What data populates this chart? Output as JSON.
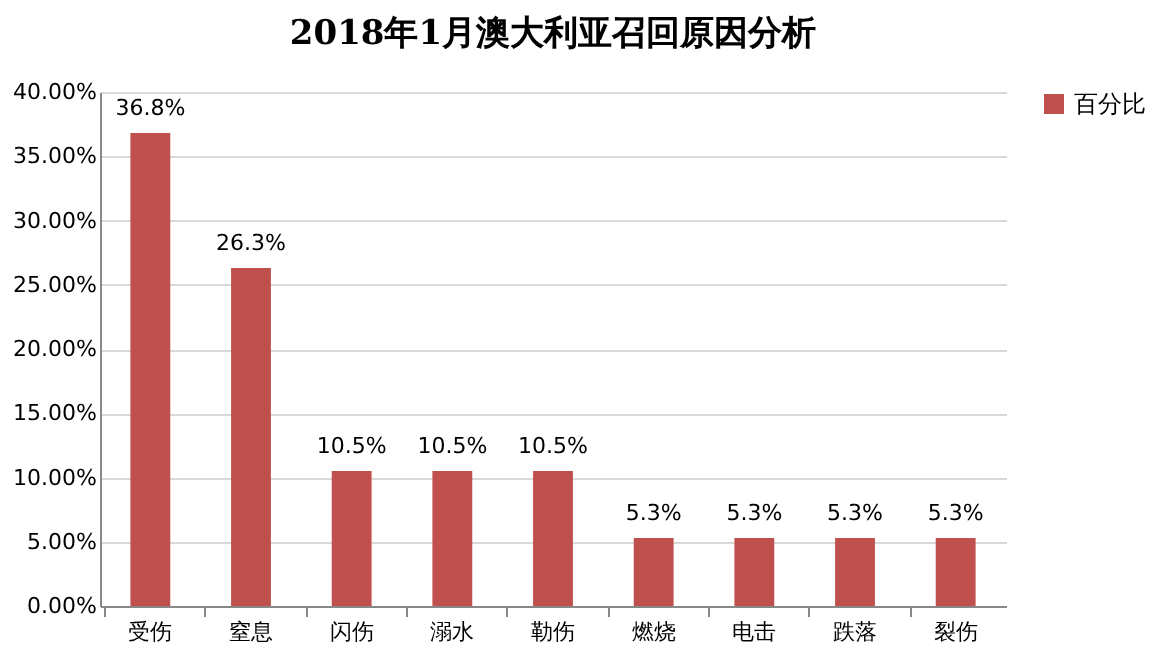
{
  "chart_data": {
    "type": "bar",
    "title": "2018年1月澳大利亚召回原因分析",
    "categories": [
      "受伤",
      "窒息",
      "闪伤",
      "溺水",
      "勒伤",
      "燃烧",
      "电击",
      "跌落",
      "裂伤"
    ],
    "series": [
      {
        "name": "百分比",
        "color": "#c0504d",
        "values": [
          36.8,
          26.3,
          10.5,
          10.5,
          10.5,
          5.3,
          5.3,
          5.3,
          5.3
        ],
        "value_labels": [
          "36.8%",
          "26.3%",
          "10.5%",
          "10.5%",
          "10.5%",
          "5.3%",
          "5.3%",
          "5.3%",
          "5.3%"
        ]
      }
    ],
    "ylim": [
      0,
      40
    ],
    "yticks": [
      {
        "value": 0,
        "label": "0.00%"
      },
      {
        "value": 5,
        "label": "5.00%"
      },
      {
        "value": 10,
        "label": "10.00%"
      },
      {
        "value": 15,
        "label": "15.00%"
      },
      {
        "value": 20,
        "label": "20.00%"
      },
      {
        "value": 25,
        "label": "25.00%"
      },
      {
        "value": 30,
        "label": "30.00%"
      },
      {
        "value": 35,
        "label": "35.00%"
      },
      {
        "value": 40,
        "label": "40.00%"
      }
    ],
    "grid": "y",
    "legend": "right"
  }
}
